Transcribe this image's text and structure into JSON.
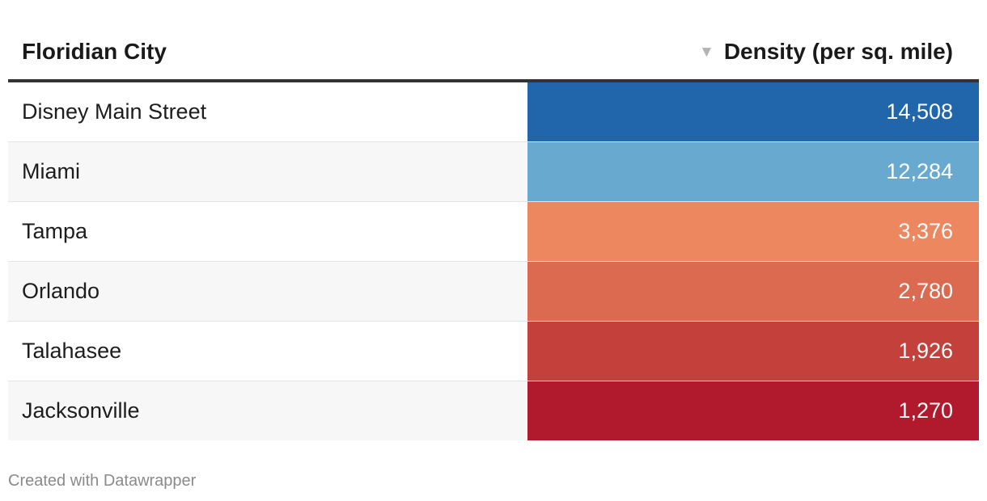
{
  "table": {
    "header": {
      "city_label": "Floridian City",
      "density_label": "Density (per sq. mile)",
      "sort_indicator": "▼"
    },
    "rows": [
      {
        "city": "Disney Main Street",
        "density": "14,508"
      },
      {
        "city": "Miami",
        "density": "12,284"
      },
      {
        "city": "Tampa",
        "density": "3,376"
      },
      {
        "city": "Orlando",
        "density": "2,780"
      },
      {
        "city": "Talahasee",
        "density": "1,926"
      },
      {
        "city": "Jacksonville",
        "density": "1,270"
      }
    ]
  },
  "chart_data": {
    "type": "table",
    "columns": [
      "Floridian City",
      "Density (per sq. mile)"
    ],
    "sorted_by": "Density (per sq. mile)",
    "sort_order": "descending",
    "categories": [
      "Disney Main Street",
      "Miami",
      "Tampa",
      "Orlando",
      "Talahasee",
      "Jacksonville"
    ],
    "values": [
      14508,
      12284,
      3376,
      2780,
      1926,
      1270
    ],
    "cell_colors": [
      "#2165aa",
      "#67a9cf",
      "#ec8760",
      "#dc6a50",
      "#c4403b",
      "#b1192c"
    ],
    "stripe_colors": [
      "#ffffff",
      "#f7f7f7"
    ]
  },
  "footer": {
    "credit": "Created with Datawrapper"
  }
}
